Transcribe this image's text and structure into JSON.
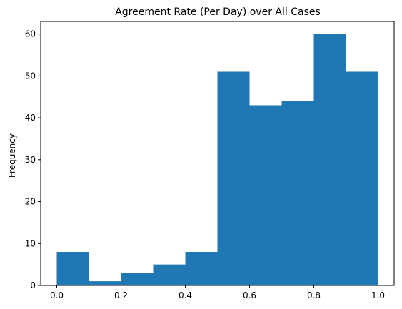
{
  "chart_data": {
    "type": "bar",
    "title": "Agreement Rate (Per Day) over All Cases",
    "xlabel": "",
    "ylabel": "Frequency",
    "bin_edges": [
      0.0,
      0.1,
      0.2,
      0.3,
      0.4,
      0.5,
      0.6,
      0.7,
      0.8,
      0.9,
      1.0
    ],
    "values": [
      8,
      1,
      3,
      5,
      8,
      51,
      43,
      44,
      60,
      51
    ],
    "xlim": [
      -0.05,
      1.05
    ],
    "ylim": [
      0,
      63
    ],
    "xticks": [
      0.0,
      0.2,
      0.4,
      0.6,
      0.8,
      1.0
    ],
    "xtick_labels": [
      "0.0",
      "0.2",
      "0.4",
      "0.6",
      "0.8",
      "1.0"
    ],
    "yticks": [
      0,
      10,
      20,
      30,
      40,
      50,
      60
    ],
    "ytick_labels": [
      "0",
      "10",
      "20",
      "30",
      "40",
      "50",
      "60"
    ],
    "grid": false,
    "bar_color": "#1f77b4"
  }
}
